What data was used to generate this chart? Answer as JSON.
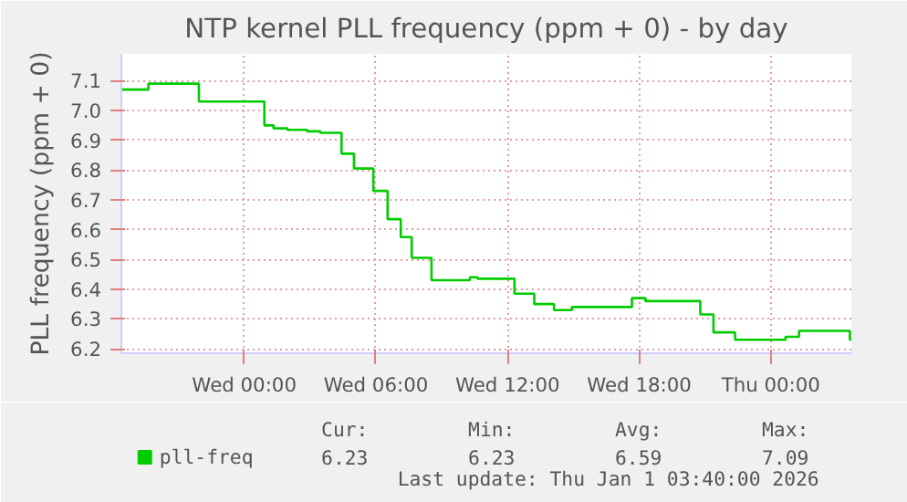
{
  "chart_data": {
    "type": "step",
    "title": "NTP kernel PLL frequency (ppm + 0) - by day",
    "ylabel": "PLL frequency (ppm + 0)",
    "x": [
      "2025-12-30T18:24",
      "2025-12-30T19:38",
      "2025-12-30T21:56",
      "2025-12-31T00:55",
      "2025-12-31T01:20",
      "2025-12-31T01:58",
      "2025-12-31T02:52",
      "2025-12-31T03:28",
      "2025-12-31T04:26",
      "2025-12-31T05:00",
      "2025-12-31T05:53",
      "2025-12-31T06:32",
      "2025-12-31T07:08",
      "2025-12-31T07:38",
      "2025-12-31T08:32",
      "2025-12-31T10:17",
      "2025-12-31T10:38",
      "2025-12-31T12:19",
      "2025-12-31T13:13",
      "2025-12-31T14:07",
      "2025-12-31T14:56",
      "2025-12-31T17:40",
      "2025-12-31T18:17",
      "2025-12-31T20:47",
      "2025-12-31T21:23",
      "2025-12-31T22:22",
      "2026-01-01T00:40",
      "2026-01-01T01:17",
      "2026-01-01T03:36",
      "2026-01-01T03:40"
    ],
    "series": [
      {
        "name": "pll-freq",
        "color": "#00cc00",
        "values": [
          7.07,
          7.09,
          7.03,
          6.95,
          6.94,
          6.935,
          6.93,
          6.925,
          6.855,
          6.805,
          6.73,
          6.635,
          6.575,
          6.505,
          6.43,
          6.44,
          6.435,
          6.385,
          6.35,
          6.33,
          6.34,
          6.37,
          6.36,
          6.315,
          6.255,
          6.23,
          6.24,
          6.26,
          6.23,
          6.23
        ]
      }
    ],
    "xlim": [
      "2025-12-30T18:24",
      "2026-01-01T03:40"
    ],
    "ylim": [
      6.185,
      7.19
    ],
    "xticks": [
      {
        "value": "2025-12-31T00:00",
        "label": "Wed 00:00"
      },
      {
        "value": "2025-12-31T06:00",
        "label": "Wed 06:00"
      },
      {
        "value": "2025-12-31T12:00",
        "label": "Wed 12:00"
      },
      {
        "value": "2025-12-31T18:00",
        "label": "Wed 18:00"
      },
      {
        "value": "2026-01-01T00:00",
        "label": "Thu 00:00"
      }
    ],
    "yticks": [
      6.2,
      6.3,
      6.4,
      6.5,
      6.6,
      6.7,
      6.8,
      6.9,
      {
        "value": 7.0,
        "label": "7.0"
      },
      7.1
    ],
    "grid": true,
    "legend": "bottom",
    "marker": "none",
    "line_style": "solid",
    "annotations": [
      "Cur:",
      "Min:",
      "Avg:",
      "Max:",
      "6.23",
      "6.23",
      "6.59",
      "7.09",
      "Last update: Thu Jan  1 03:40:00 2026"
    ]
  }
}
